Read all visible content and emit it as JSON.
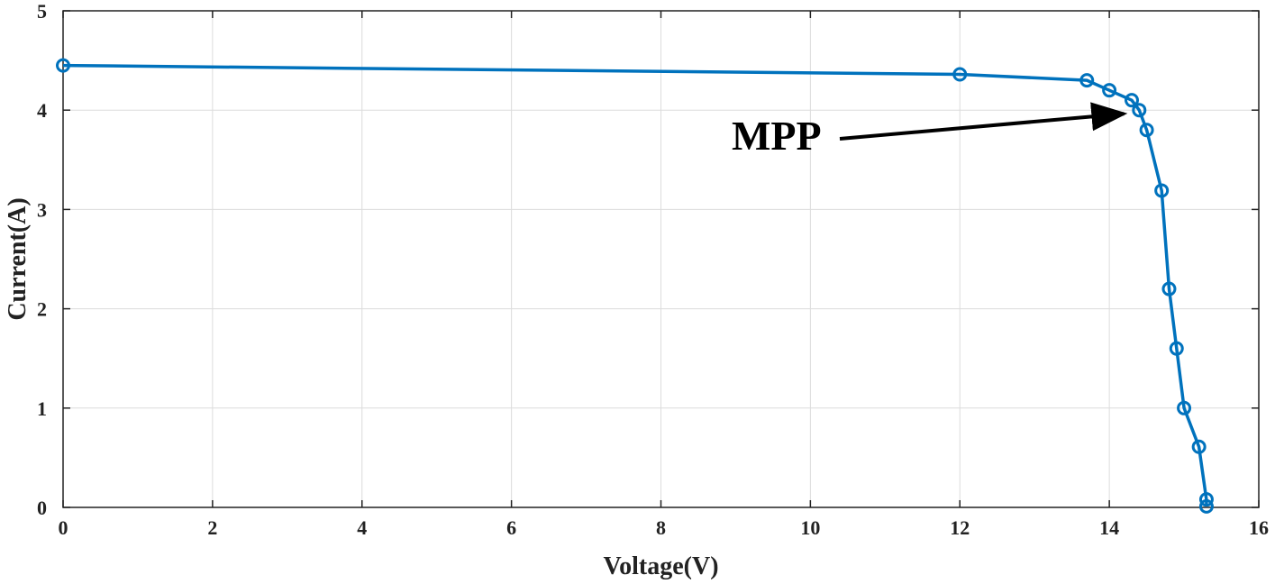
{
  "chart_data": {
    "type": "line",
    "title": "",
    "xlabel": "Voltage(V)",
    "ylabel": "Current(A)",
    "xlim": [
      0,
      16
    ],
    "ylim": [
      0,
      5
    ],
    "xticks": [
      "0",
      "2",
      "4",
      "6",
      "8",
      "10",
      "12",
      "14",
      "16"
    ],
    "yticks": [
      "0",
      "1",
      "2",
      "3",
      "4",
      "5"
    ],
    "grid": true,
    "series": [
      {
        "name": "",
        "color": "#0072BD",
        "marker": "circle",
        "x": [
          0,
          12.0,
          13.7,
          14.0,
          14.3,
          14.4,
          14.5,
          14.7,
          14.8,
          14.9,
          15.0,
          15.2,
          15.3,
          15.3
        ],
        "y": [
          4.45,
          4.36,
          4.3,
          4.2,
          4.1,
          4.0,
          3.8,
          3.19,
          2.2,
          1.6,
          1.0,
          0.61,
          0.08,
          0.01
        ]
      }
    ],
    "annotations": [
      {
        "text": "MPP",
        "arrow": true,
        "points_to": [
          14.22,
          4.0
        ]
      }
    ]
  }
}
